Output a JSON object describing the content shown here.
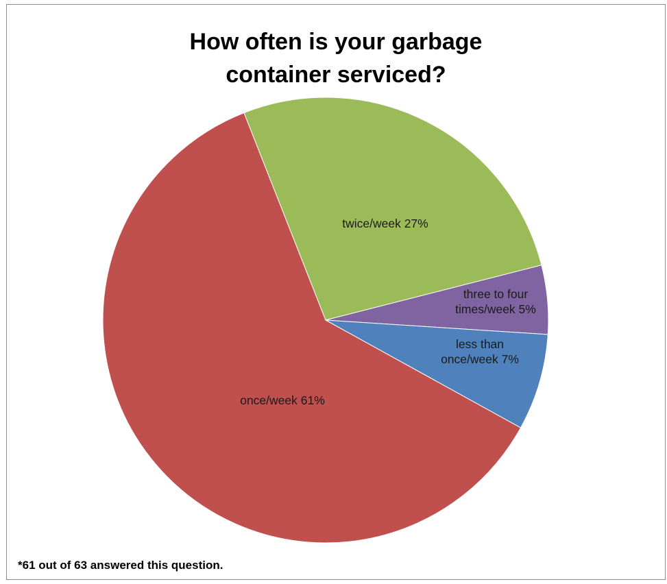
{
  "chart_data": {
    "type": "pie",
    "title_lines": [
      "How often is your garbage",
      "container serviced?"
    ],
    "slices": [
      {
        "label_lines": [
          "twice/week 27%"
        ],
        "value": 27,
        "color": "#9bbb59"
      },
      {
        "label_lines": [
          "three to four",
          "times/week 5%"
        ],
        "value": 5,
        "color": "#8064a2"
      },
      {
        "label_lines": [
          "less than",
          "once/week 7%"
        ],
        "value": 7,
        "color": "#4f81bd"
      },
      {
        "label_lines": [
          "once/week 61%"
        ],
        "value": 61,
        "color": "#c0504d"
      }
    ],
    "legend": "none",
    "footnote": "*61 out of 63 answered this question."
  }
}
